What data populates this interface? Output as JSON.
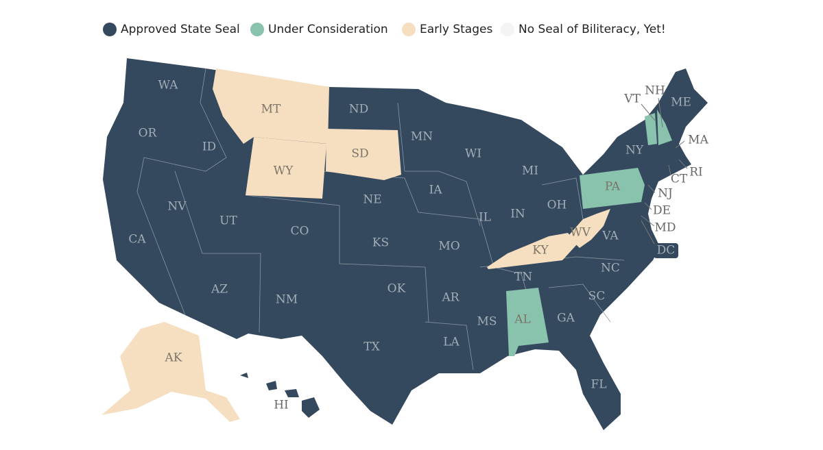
{
  "legend": [
    {
      "label": "Approved State Seal",
      "color": "#34495e",
      "states": [
        "WA",
        "OR",
        "CA",
        "ID",
        "NV",
        "UT",
        "AZ",
        "CO",
        "NM",
        "ND",
        "NE",
        "KS",
        "OK",
        "TX",
        "MN",
        "IA",
        "MO",
        "AR",
        "LA",
        "WI",
        "IL",
        "MS",
        "MI",
        "IN",
        "TN",
        "OH",
        "GA",
        "FL",
        "SC",
        "NC",
        "VA",
        "NY",
        "ME",
        "MA",
        "RI",
        "CT",
        "NJ",
        "DE",
        "MD",
        "DC",
        "HI"
      ]
    },
    {
      "label": "Under Consideration",
      "color": "#89c2ad",
      "states": [
        "VT",
        "NH",
        "PA",
        "AL"
      ]
    },
    {
      "label": "Early Stages",
      "color": "#f5dfc0",
      "states": [
        "MT",
        "WY",
        "SD",
        "KY",
        "WV",
        "AK"
      ]
    },
    {
      "label": "No Seal of Biliteracy, Yet!",
      "color": "#f4f4f4",
      "states": []
    }
  ]
}
